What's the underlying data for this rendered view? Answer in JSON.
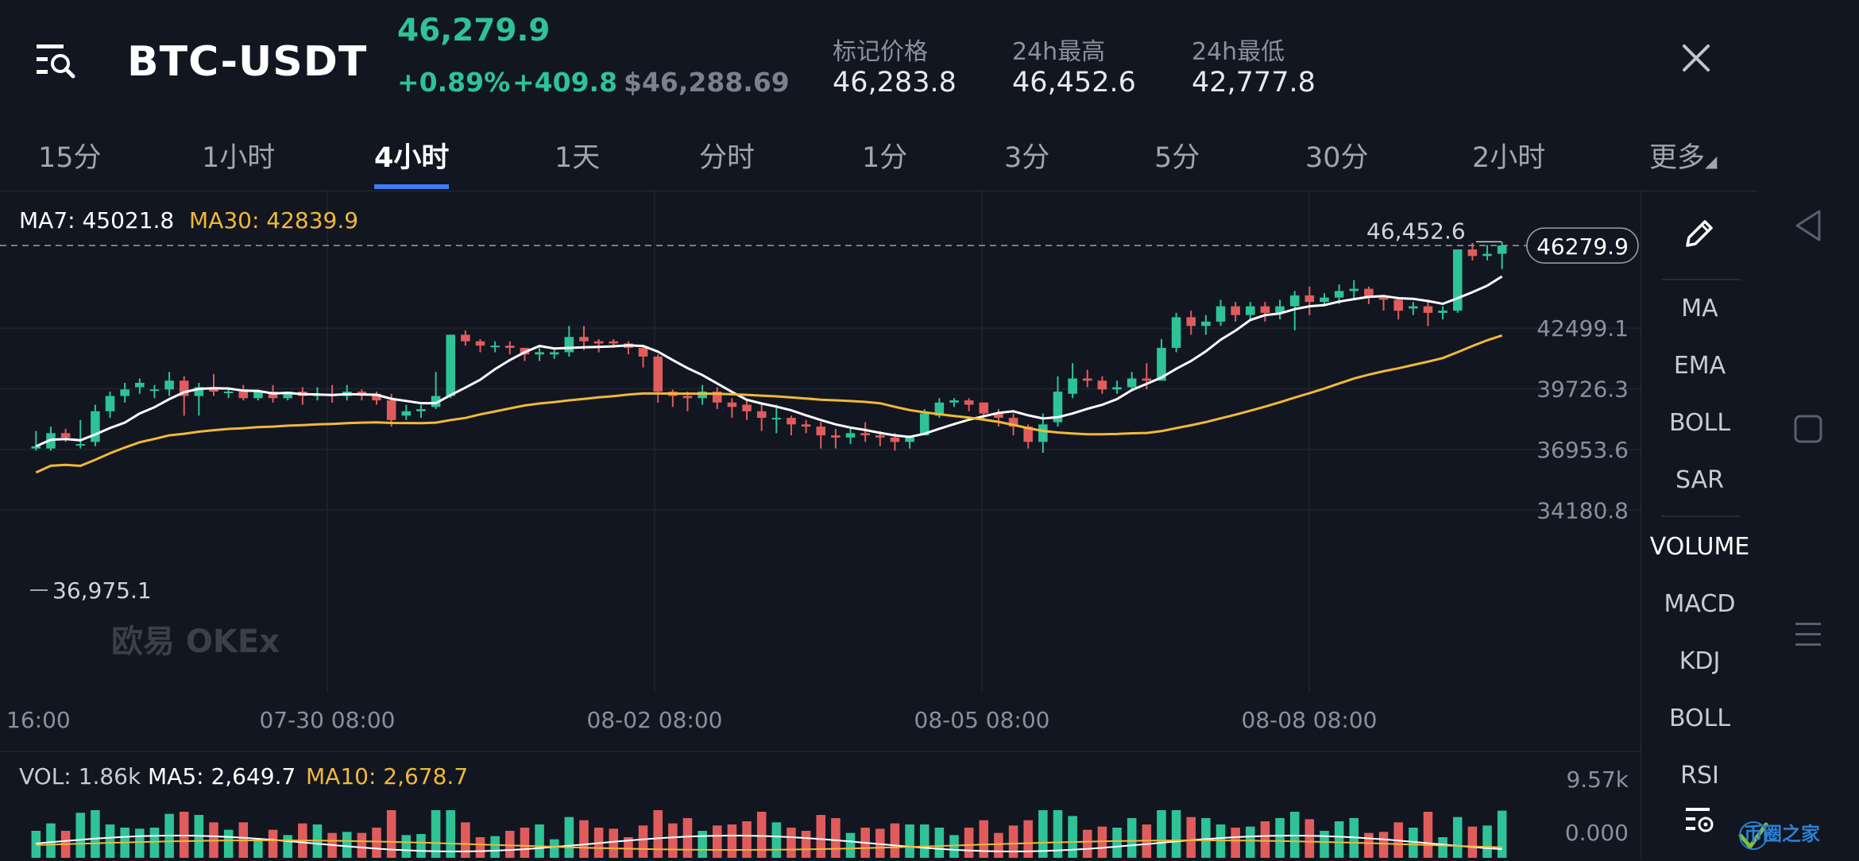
{
  "header": {
    "pair": "BTC-USDT",
    "last_price": "46,279.9",
    "change_pct": "+0.89%",
    "change_abs": "+409.8",
    "usd_price": "$46,288.69",
    "stats": [
      {
        "label": "标记价格",
        "value": "46,283.8"
      },
      {
        "label": "24h最高",
        "value": "46,452.6"
      },
      {
        "label": "24h最低",
        "value": "42,777.8"
      }
    ],
    "menu_icon": "list-search-icon",
    "close_icon": "close-icon"
  },
  "tabs": [
    {
      "label": "15分"
    },
    {
      "label": "1小时"
    },
    {
      "label": "4小时"
    },
    {
      "label": "1天"
    },
    {
      "label": "分时"
    },
    {
      "label": "1分"
    },
    {
      "label": "3分"
    },
    {
      "label": "5分"
    },
    {
      "label": "30分"
    },
    {
      "label": "2小时"
    },
    {
      "label": "更多"
    }
  ],
  "active_tab": "4小时",
  "indicators": {
    "ma7_label": "MA7: 45021.8",
    "ma30_label": "MA30: 42839.9",
    "vol_label": "VOL: 1.86k",
    "ma5_label": "MA5: 2,649.7",
    "ma10_label": "MA10: 2,678.7"
  },
  "side_panel": {
    "draw_icon": "pencil-icon",
    "items": [
      "MA",
      "EMA",
      "BOLL",
      "SAR",
      "VOLUME",
      "MACD",
      "KDJ",
      "BOLL",
      "RSI"
    ],
    "settings_icon": "list-settings-icon"
  },
  "chart_data": {
    "type": "candlestick",
    "symbol": "BTC-USDT",
    "interval": "4小时",
    "y_ticks": [
      42499.1,
      39726.3,
      36953.6,
      34180.8
    ],
    "ylim": [
      33500,
      47300
    ],
    "x_labels": [
      "16:00",
      "07-30 08:00",
      "08-02 08:00",
      "08-05 08:00",
      "08-08 08:00"
    ],
    "high_marker": "46,452.6",
    "low_marker": "36,975.1",
    "current_price_tag": "46279.9",
    "current_price": 46279.9,
    "candles": [
      [
        37000,
        37800,
        37100,
        36900
      ],
      [
        37000,
        38000,
        37700,
        36900
      ],
      [
        37700,
        37900,
        37500,
        37300
      ],
      [
        37200,
        38300,
        37200,
        37000
      ],
      [
        37300,
        39000,
        38700,
        37100
      ],
      [
        38700,
        39600,
        39400,
        38400
      ],
      [
        39400,
        40000,
        39700,
        39100
      ],
      [
        39800,
        40200,
        40000,
        39500
      ],
      [
        39700,
        39900,
        39700,
        39300
      ],
      [
        39700,
        40500,
        40100,
        39400
      ],
      [
        40100,
        40300,
        39400,
        38500
      ],
      [
        39400,
        40000,
        39800,
        38500
      ],
      [
        39800,
        40400,
        39600,
        39400
      ],
      [
        39600,
        39800,
        39600,
        39300
      ],
      [
        39600,
        39900,
        39300,
        39200
      ],
      [
        39300,
        39700,
        39600,
        39200
      ],
      [
        39600,
        39900,
        39300,
        39100
      ],
      [
        39300,
        39600,
        39600,
        39200
      ],
      [
        39600,
        39800,
        39400,
        39000
      ],
      [
        39400,
        39800,
        39500,
        39200
      ],
      [
        39500,
        39900,
        39400,
        39100
      ],
      [
        39400,
        39900,
        39600,
        39200
      ],
      [
        39600,
        39700,
        39500,
        39200
      ],
      [
        39500,
        39600,
        39200,
        39000
      ],
      [
        39200,
        39500,
        38300,
        38000
      ],
      [
        38500,
        39000,
        38700,
        38300
      ],
      [
        38700,
        39000,
        38800,
        38400
      ],
      [
        38900,
        40500,
        39400,
        38800
      ],
      [
        39400,
        42200,
        42200,
        39300
      ],
      [
        42200,
        42400,
        41900,
        41700
      ],
      [
        41900,
        42000,
        41700,
        41400
      ],
      [
        41700,
        41900,
        41700,
        41400
      ],
      [
        41700,
        41900,
        41600,
        41300
      ],
      [
        41600,
        41600,
        41300,
        41000
      ],
      [
        41300,
        41600,
        41400,
        41000
      ],
      [
        41300,
        41600,
        41400,
        41100
      ],
      [
        41400,
        42600,
        42100,
        41200
      ],
      [
        42100,
        42600,
        41900,
        41500
      ],
      [
        41900,
        42000,
        41800,
        41400
      ],
      [
        41900,
        42000,
        41800,
        41600
      ],
      [
        41800,
        41900,
        41600,
        41300
      ],
      [
        41600,
        41700,
        41200,
        40700
      ],
      [
        41200,
        41300,
        39600,
        39100
      ],
      [
        39600,
        39700,
        39400,
        38900
      ],
      [
        39400,
        39600,
        39300,
        38700
      ],
      [
        39300,
        39900,
        39600,
        39000
      ],
      [
        39600,
        39800,
        39100,
        38800
      ],
      [
        39100,
        39300,
        38900,
        38400
      ],
      [
        39000,
        39200,
        38700,
        38300
      ],
      [
        38700,
        39000,
        38400,
        37800
      ],
      [
        38400,
        39000,
        38400,
        37700
      ],
      [
        38400,
        38500,
        38100,
        37600
      ],
      [
        38100,
        38300,
        38000,
        37700
      ],
      [
        38000,
        38200,
        37600,
        37000
      ],
      [
        37600,
        37900,
        37500,
        37000
      ],
      [
        37500,
        38000,
        37700,
        37200
      ],
      [
        37700,
        38200,
        37600,
        37300
      ],
      [
        37600,
        37800,
        37500,
        37100
      ],
      [
        37500,
        37700,
        37300,
        36900
      ],
      [
        37300,
        37600,
        37500,
        37000
      ],
      [
        37600,
        38800,
        38600,
        37600
      ],
      [
        38500,
        39300,
        39100,
        38400
      ],
      [
        39100,
        39300,
        39200,
        38900
      ],
      [
        39200,
        39300,
        39000,
        38700
      ],
      [
        39100,
        39100,
        38600,
        38300
      ],
      [
        38600,
        38800,
        38400,
        38000
      ],
      [
        38400,
        38600,
        38000,
        37600
      ],
      [
        38000,
        38100,
        37300,
        37000
      ],
      [
        37300,
        38600,
        38100,
        36800
      ],
      [
        38200,
        40300,
        39600,
        38000
      ],
      [
        39500,
        40900,
        40200,
        39300
      ],
      [
        40200,
        40600,
        40100,
        39800
      ],
      [
        40100,
        40300,
        39700,
        39500
      ],
      [
        39700,
        40100,
        39800,
        39500
      ],
      [
        39800,
        40500,
        40200,
        39600
      ],
      [
        40200,
        40900,
        40100,
        39700
      ],
      [
        40100,
        42000,
        41600,
        40100
      ],
      [
        41600,
        43200,
        43000,
        41400
      ],
      [
        43000,
        43300,
        42600,
        42200
      ],
      [
        42600,
        43100,
        42800,
        42200
      ],
      [
        42800,
        43800,
        43500,
        42600
      ],
      [
        43500,
        43700,
        43100,
        42800
      ],
      [
        43100,
        43700,
        43500,
        42900
      ],
      [
        43500,
        43700,
        43200,
        42800
      ],
      [
        43200,
        43800,
        43500,
        42900
      ],
      [
        43500,
        44200,
        44000,
        42400
      ],
      [
        44000,
        44400,
        43700,
        43100
      ],
      [
        43700,
        44100,
        43900,
        43500
      ],
      [
        43900,
        44500,
        44200,
        43600
      ],
      [
        44200,
        44700,
        44300,
        43800
      ],
      [
        44300,
        44400,
        43900,
        43600
      ],
      [
        43900,
        44000,
        43800,
        43300
      ],
      [
        43800,
        43900,
        43300,
        42900
      ],
      [
        43400,
        43700,
        43500,
        43100
      ],
      [
        43500,
        43800,
        43200,
        42600
      ],
      [
        43200,
        43500,
        43300,
        42900
      ],
      [
        43300,
        44600,
        46100,
        43200
      ],
      [
        46100,
        46400,
        45800,
        45600
      ],
      [
        45800,
        46300,
        45900,
        45600
      ],
      [
        45900,
        46453,
        46280,
        45200
      ]
    ]
  },
  "volume_data": {
    "ymax_label": "9.57k",
    "ymin_label": "0.000"
  },
  "colors": {
    "background": "#121620",
    "up": "#2ec397",
    "down": "#e05c5c",
    "ma7": "#ffffff",
    "ma30": "#f0b93a",
    "accent": "#3e7bf5"
  },
  "nav": {
    "back_icon": "triangle-back-icon",
    "home_icon": "square-home-icon",
    "menu_icon": "hamburger-menu-icon"
  },
  "logo_text": "欧易 OKEx",
  "site_watermark": "币圈之家"
}
